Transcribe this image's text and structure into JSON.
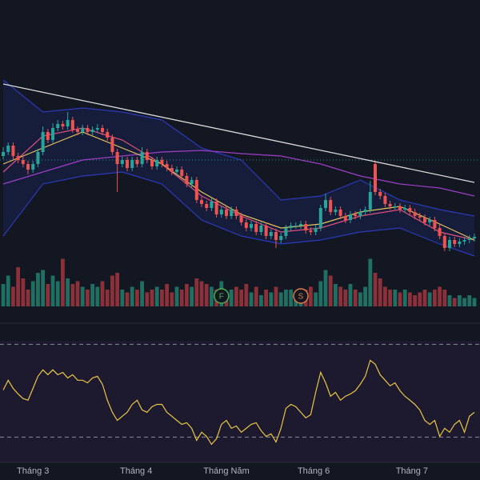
{
  "chart_data": {
    "type": "candlestick",
    "up_color": "#26a69a",
    "down_color": "#ef5350",
    "xlim": [
      -0.65,
      96.13
    ],
    "ylim": [
      0,
      270
    ],
    "xticks": [
      {
        "value": 6,
        "label": "Tháng 3"
      },
      {
        "value": 26.8,
        "label": "Tháng 4"
      },
      {
        "value": 45,
        "label": "Tháng Năm"
      },
      {
        "value": 62.6,
        "label": "Tháng 6"
      },
      {
        "value": 82.4,
        "label": "Tháng 7"
      }
    ],
    "candles": [
      [
        135,
        146,
        131,
        140
      ],
      [
        140,
        152,
        136,
        148
      ],
      [
        148,
        152,
        131,
        135
      ],
      [
        135,
        139,
        126,
        130
      ],
      [
        130,
        134,
        121,
        125
      ],
      [
        125,
        129,
        112,
        118
      ],
      [
        118,
        129,
        114,
        125
      ],
      [
        125,
        144,
        121,
        140
      ],
      [
        140,
        172,
        136,
        165
      ],
      [
        165,
        169,
        151,
        155
      ],
      [
        155,
        176,
        151,
        170
      ],
      [
        170,
        180,
        166,
        175
      ],
      [
        175,
        179,
        168,
        172
      ],
      [
        172,
        190,
        168,
        180
      ],
      [
        180,
        184,
        164,
        168
      ],
      [
        168,
        172,
        161,
        165
      ],
      [
        165,
        174,
        161,
        170
      ],
      [
        170,
        174,
        161,
        165
      ],
      [
        165,
        172,
        161,
        168
      ],
      [
        168,
        175,
        164,
        170
      ],
      [
        170,
        174,
        161,
        165
      ],
      [
        165,
        169,
        154,
        158
      ],
      [
        158,
        162,
        136,
        140
      ],
      [
        140,
        144,
        90,
        125
      ],
      [
        125,
        134,
        121,
        130
      ],
      [
        130,
        134,
        116,
        120
      ],
      [
        120,
        134,
        116,
        130
      ],
      [
        130,
        134,
        121,
        125
      ],
      [
        125,
        146,
        121,
        140
      ],
      [
        140,
        144,
        126,
        130
      ],
      [
        130,
        134,
        118,
        122
      ],
      [
        122,
        134,
        118,
        130
      ],
      [
        130,
        134,
        121,
        125
      ],
      [
        125,
        129,
        116,
        120
      ],
      [
        120,
        124,
        111,
        115
      ],
      [
        115,
        122,
        111,
        118
      ],
      [
        118,
        122,
        106,
        110
      ],
      [
        110,
        114,
        96,
        100
      ],
      [
        100,
        109,
        96,
        105
      ],
      [
        105,
        109,
        76,
        80
      ],
      [
        80,
        84,
        71,
        75
      ],
      [
        75,
        79,
        66,
        70
      ],
      [
        70,
        82,
        66,
        78
      ],
      [
        78,
        82,
        58,
        62
      ],
      [
        62,
        72,
        58,
        68
      ],
      [
        68,
        72,
        56,
        60
      ],
      [
        60,
        72,
        56,
        68
      ],
      [
        68,
        72,
        56,
        60
      ],
      [
        60,
        64,
        48,
        52
      ],
      [
        52,
        56,
        41,
        45
      ],
      [
        45,
        54,
        41,
        50
      ],
      [
        50,
        54,
        36,
        40
      ],
      [
        40,
        52,
        36,
        48
      ],
      [
        48,
        52,
        31,
        35
      ],
      [
        35,
        44,
        31,
        40
      ],
      [
        40,
        44,
        20,
        30
      ],
      [
        30,
        39,
        26,
        35
      ],
      [
        35,
        49,
        31,
        45
      ],
      [
        45,
        52,
        41,
        48
      ],
      [
        48,
        52,
        44,
        48
      ],
      [
        48,
        54,
        44,
        50
      ],
      [
        50,
        54,
        38,
        42
      ],
      [
        42,
        46,
        36,
        40
      ],
      [
        40,
        49,
        36,
        45
      ],
      [
        45,
        74,
        41,
        70
      ],
      [
        70,
        88,
        66,
        80
      ],
      [
        80,
        84,
        61,
        65
      ],
      [
        65,
        72,
        61,
        68
      ],
      [
        68,
        72,
        56,
        60
      ],
      [
        60,
        64,
        51,
        55
      ],
      [
        55,
        66,
        51,
        62
      ],
      [
        62,
        66,
        56,
        60
      ],
      [
        60,
        69,
        56,
        65
      ],
      [
        65,
        72,
        61,
        68
      ],
      [
        68,
        104,
        64,
        90
      ],
      [
        125,
        129,
        86,
        90
      ],
      [
        90,
        94,
        81,
        85
      ],
      [
        85,
        89,
        71,
        75
      ],
      [
        75,
        79,
        68,
        72
      ],
      [
        72,
        76,
        68,
        72
      ],
      [
        72,
        76,
        64,
        68
      ],
      [
        68,
        74,
        64,
        70
      ],
      [
        70,
        74,
        61,
        65
      ],
      [
        65,
        69,
        56,
        60
      ],
      [
        60,
        64,
        54,
        58
      ],
      [
        58,
        62,
        48,
        52
      ],
      [
        52,
        59,
        48,
        55
      ],
      [
        55,
        59,
        41,
        45
      ],
      [
        45,
        49,
        31,
        35
      ],
      [
        35,
        39,
        16,
        20
      ],
      [
        20,
        34,
        16,
        30
      ],
      [
        30,
        34,
        21,
        25
      ],
      [
        25,
        32,
        21,
        28
      ],
      [
        28,
        34,
        24,
        30
      ],
      [
        30,
        36,
        26,
        32
      ],
      [
        32,
        38,
        28,
        34
      ]
    ],
    "volume": {
      "ylim": [
        0,
        100
      ],
      "up_color": "#1f6f63",
      "down_color": "#8c3039",
      "values": [
        40,
        55,
        35,
        70,
        50,
        30,
        45,
        60,
        65,
        40,
        55,
        45,
        85,
        50,
        40,
        45,
        35,
        30,
        40,
        35,
        45,
        30,
        55,
        60,
        30,
        25,
        35,
        30,
        45,
        25,
        30,
        35,
        30,
        40,
        25,
        35,
        30,
        40,
        35,
        50,
        45,
        40,
        35,
        30,
        45,
        25,
        30,
        35,
        30,
        40,
        25,
        35,
        20,
        30,
        25,
        35,
        25,
        30,
        30,
        20,
        25,
        30,
        35,
        25,
        45,
        65,
        55,
        40,
        35,
        30,
        40,
        30,
        25,
        35,
        85,
        60,
        50,
        35,
        30,
        30,
        25,
        30,
        25,
        20,
        25,
        30,
        25,
        30,
        35,
        30,
        20,
        15,
        20,
        15,
        20,
        15
      ]
    },
    "band": {
      "color": "#2a3ab8",
      "fill": "#1a2350",
      "x": [
        0,
        8,
        16,
        24,
        32,
        40,
        48,
        56,
        64,
        72,
        80,
        88,
        95
      ],
      "upper": [
        230,
        190,
        195,
        190,
        180,
        145,
        130,
        80,
        85,
        105,
        80,
        68,
        60
      ],
      "lower": [
        35,
        100,
        110,
        115,
        100,
        55,
        35,
        25,
        30,
        40,
        45,
        25,
        10
      ]
    },
    "overlays": [
      {
        "color": "#9c3fc4",
        "x": [
          0,
          8,
          16,
          24,
          32,
          40,
          48,
          56,
          64,
          72,
          80,
          88,
          95
        ],
        "values": [
          100,
          115,
          130,
          135,
          140,
          142,
          138,
          135,
          125,
          110,
          100,
          95,
          85
        ]
      },
      {
        "color": "#e0507f",
        "x": [
          0,
          8,
          16,
          24,
          32,
          40,
          48,
          56,
          64,
          72,
          80,
          88,
          95
        ],
        "values": [
          115,
          160,
          170,
          155,
          125,
          85,
          60,
          40,
          45,
          60,
          68,
          40,
          30
        ]
      },
      {
        "color": "#e6c35c",
        "x": [
          0,
          8,
          16,
          24,
          32,
          40,
          48,
          56,
          64,
          72,
          80,
          88,
          95
        ],
        "values": [
          125,
          145,
          165,
          145,
          125,
          90,
          62,
          45,
          50,
          65,
          72,
          50,
          30
        ]
      }
    ],
    "trendline": {
      "color": "#d9d9d9",
      "x": [
        0,
        95
      ],
      "values": [
        225,
        102
      ]
    },
    "price_line": {
      "value": 130,
      "color": "#2f8f8a"
    },
    "markers": [
      {
        "index": 44,
        "label": "F",
        "color": "#4caf50"
      },
      {
        "index": 60,
        "label": "S",
        "color": "#e07a4f"
      }
    ],
    "rsi": {
      "color": "#e8c547",
      "ylim": [
        26,
        71.5
      ],
      "levels": [
        70,
        30
      ],
      "values": [
        50.3,
        54.5,
        51,
        48.6,
        46.6,
        45.9,
        51,
        56.2,
        59,
        56.9,
        59,
        56.9,
        57.9,
        55.5,
        56.9,
        54.5,
        54.5,
        53.4,
        55.5,
        56.2,
        52.8,
        45.9,
        40.7,
        37.2,
        39,
        40.7,
        44.1,
        45.9,
        41.7,
        40.7,
        43.1,
        44.1,
        44.1,
        40.7,
        39,
        37.2,
        35.5,
        36.2,
        33.8,
        28.6,
        32.1,
        30.3,
        26.9,
        29.3,
        35.5,
        37.2,
        33.8,
        34.8,
        32.1,
        33.8,
        35.5,
        36.2,
        32.8,
        30.3,
        31.4,
        27.9,
        33.8,
        42.4,
        44.1,
        43.1,
        40.7,
        38.3,
        39.7,
        49.3,
        57.9,
        53.4,
        47.6,
        49.3,
        45.9,
        47.6,
        48.6,
        50,
        52.8,
        56.2,
        63.1,
        61.4,
        56.9,
        54.5,
        52.1,
        53.4,
        50,
        47.6,
        45.9,
        44.1,
        41.7,
        37.2,
        35.5,
        37.2,
        30.3,
        33.8,
        32.1,
        35.5,
        37.2,
        32.1,
        39,
        40.7
      ]
    }
  }
}
